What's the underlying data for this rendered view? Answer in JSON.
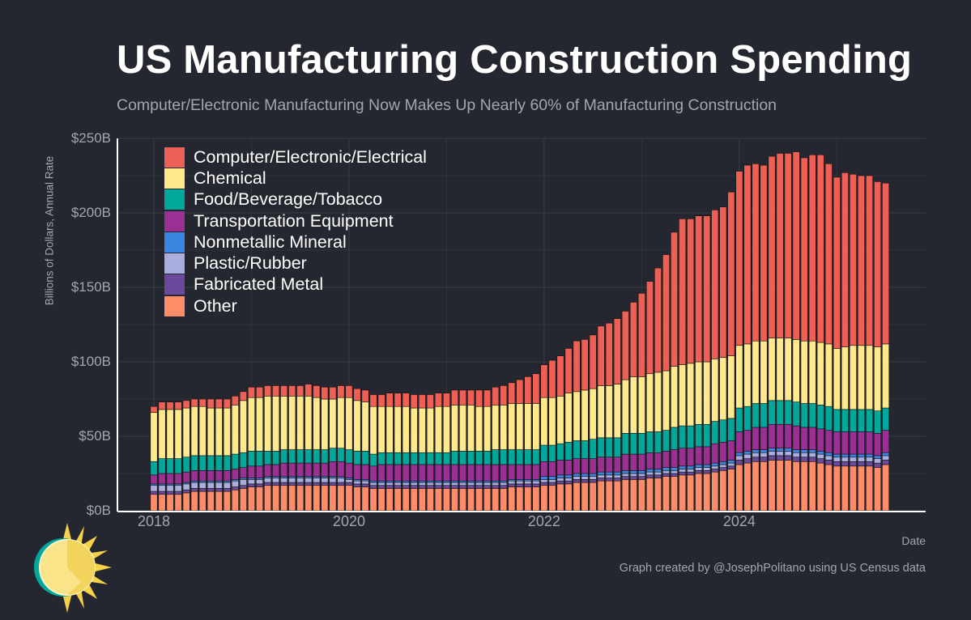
{
  "header": {
    "title": "US Manufacturing Construction Spending",
    "subtitle": "Computer/Electronic Manufacturing Now Makes Up Nearly 60% of Manufacturing Construction"
  },
  "footer": {
    "credit": "Graph created by @JosephPolitano using US Census data"
  },
  "colors": {
    "background": "#24272f",
    "grid": "#3a3d45",
    "axis": "#ffffff"
  },
  "chart_data": {
    "type": "bar",
    "stacked": true,
    "title": "US Manufacturing Construction Spending",
    "subtitle": "Computer/Electronic Manufacturing Now Makes Up Nearly 60% of Manufacturing Construction",
    "xlabel": "Date",
    "ylabel": "Billions of Dollars, Annual Rate",
    "ylim": [
      0,
      250
    ],
    "yticks": [
      {
        "v": 0,
        "label": "$0B"
      },
      {
        "v": 50,
        "label": "$50B"
      },
      {
        "v": 100,
        "label": "$100B"
      },
      {
        "v": 150,
        "label": "$150B"
      },
      {
        "v": 200,
        "label": "$200B"
      },
      {
        "v": 250,
        "label": "$250B"
      }
    ],
    "xticks": [
      "2018",
      "2020",
      "2022",
      "2024"
    ],
    "grid": true,
    "legend_position": "top-left",
    "x": [
      "2018-01",
      "2018-02",
      "2018-03",
      "2018-04",
      "2018-05",
      "2018-06",
      "2018-07",
      "2018-08",
      "2018-09",
      "2018-10",
      "2018-11",
      "2018-12",
      "2019-01",
      "2019-02",
      "2019-03",
      "2019-04",
      "2019-05",
      "2019-06",
      "2019-07",
      "2019-08",
      "2019-09",
      "2019-10",
      "2019-11",
      "2019-12",
      "2020-01",
      "2020-02",
      "2020-03",
      "2020-04",
      "2020-05",
      "2020-06",
      "2020-07",
      "2020-08",
      "2020-09",
      "2020-10",
      "2020-11",
      "2020-12",
      "2021-01",
      "2021-02",
      "2021-03",
      "2021-04",
      "2021-05",
      "2021-06",
      "2021-07",
      "2021-08",
      "2021-09",
      "2021-10",
      "2021-11",
      "2021-12",
      "2022-01",
      "2022-02",
      "2022-03",
      "2022-04",
      "2022-05",
      "2022-06",
      "2022-07",
      "2022-08",
      "2022-09",
      "2022-10",
      "2022-11",
      "2022-12",
      "2023-01",
      "2023-02",
      "2023-03",
      "2023-04",
      "2023-05",
      "2023-06",
      "2023-07",
      "2023-08",
      "2023-09",
      "2023-10",
      "2023-11",
      "2023-12",
      "2024-01",
      "2024-02",
      "2024-03",
      "2024-04",
      "2024-05",
      "2024-06",
      "2024-07",
      "2024-08",
      "2024-09",
      "2024-10",
      "2024-11",
      "2024-12",
      "2025-01",
      "2025-02",
      "2025-03",
      "2025-04",
      "2025-05",
      "2025-06",
      "2025-07"
    ],
    "series": [
      {
        "name": "Other",
        "color": "#ff8c69",
        "values": [
          11,
          11,
          11,
          11,
          12,
          13,
          13,
          13,
          13,
          13,
          14,
          15,
          16,
          16,
          17,
          17,
          17,
          17,
          17,
          17,
          17,
          17,
          17,
          17,
          17,
          16,
          16,
          15,
          15,
          15,
          15,
          15,
          15,
          15,
          15,
          15,
          15,
          15,
          15,
          15,
          15,
          15,
          15,
          15,
          16,
          16,
          16,
          16,
          17,
          17,
          18,
          18,
          19,
          19,
          19,
          20,
          20,
          20,
          21,
          21,
          21,
          22,
          22,
          23,
          23,
          24,
          24,
          25,
          25,
          26,
          27,
          28,
          31,
          32,
          33,
          33,
          34,
          34,
          34,
          33,
          33,
          33,
          32,
          31,
          30,
          30,
          30,
          30,
          30,
          29,
          31
        ]
      },
      {
        "name": "Fabricated Metal",
        "color": "#6b4a9b",
        "values": [
          2,
          2,
          2,
          2,
          2,
          2,
          2,
          2,
          2,
          2,
          2,
          2,
          2,
          2,
          2,
          2,
          2,
          2,
          2,
          2,
          2,
          2,
          2,
          2,
          2,
          2,
          2,
          2,
          2,
          2,
          2,
          2,
          2,
          2,
          2,
          2,
          2,
          2,
          2,
          2,
          2,
          2,
          2,
          2,
          2,
          2,
          2,
          2,
          2,
          2,
          2,
          2,
          2,
          2,
          2,
          2,
          2,
          2,
          2,
          2,
          2,
          2,
          2,
          2,
          2,
          2,
          2,
          2,
          2,
          2,
          2,
          2,
          3,
          3,
          3,
          3,
          3,
          3,
          3,
          3,
          3,
          3,
          3,
          3,
          3,
          3,
          3,
          3,
          3,
          3,
          3
        ]
      },
      {
        "name": "Plastic/Rubber",
        "color": "#a9aede",
        "values": [
          4,
          4,
          4,
          4,
          4,
          4,
          4,
          4,
          4,
          4,
          4,
          4,
          3,
          3,
          3,
          3,
          3,
          3,
          3,
          3,
          3,
          3,
          3,
          3,
          2,
          2,
          2,
          2,
          2,
          2,
          2,
          2,
          2,
          2,
          2,
          2,
          2,
          2,
          2,
          2,
          2,
          2,
          2,
          2,
          2,
          2,
          2,
          2,
          2,
          2,
          2,
          2,
          2,
          2,
          2,
          2,
          2,
          2,
          2,
          2,
          2,
          2,
          2,
          2,
          2,
          2,
          2,
          2,
          2,
          2,
          2,
          2,
          3,
          3,
          3,
          3,
          3,
          3,
          3,
          3,
          3,
          3,
          3,
          3,
          3,
          3,
          3,
          3,
          3,
          3,
          3
        ]
      },
      {
        "name": "Nonmetallic Mineral",
        "color": "#3b86e0",
        "values": [
          1,
          1,
          1,
          1,
          1,
          1,
          1,
          1,
          1,
          1,
          1,
          1,
          1,
          1,
          1,
          1,
          1,
          1,
          1,
          1,
          1,
          1,
          1,
          1,
          1,
          1,
          1,
          1,
          1,
          1,
          1,
          1,
          1,
          1,
          1,
          1,
          1,
          1,
          1,
          1,
          1,
          1,
          1,
          1,
          1,
          1,
          1,
          1,
          2,
          2,
          2,
          2,
          2,
          2,
          2,
          2,
          2,
          2,
          2,
          2,
          2,
          2,
          2,
          2,
          2,
          2,
          2,
          2,
          2,
          2,
          2,
          2,
          2,
          2,
          2,
          2,
          2,
          2,
          2,
          2,
          2,
          2,
          2,
          2,
          2,
          2,
          2,
          2,
          2,
          2,
          2
        ]
      },
      {
        "name": "Transportation Equipment",
        "color": "#9b2f93",
        "values": [
          6,
          7,
          7,
          7,
          7,
          7,
          7,
          7,
          7,
          7,
          7,
          7,
          8,
          8,
          8,
          8,
          9,
          9,
          9,
          9,
          9,
          9,
          10,
          10,
          10,
          10,
          10,
          10,
          11,
          11,
          11,
          11,
          11,
          11,
          11,
          11,
          11,
          11,
          11,
          11,
          11,
          11,
          11,
          11,
          10,
          10,
          10,
          10,
          10,
          10,
          10,
          10,
          10,
          10,
          10,
          10,
          10,
          10,
          11,
          11,
          11,
          11,
          11,
          11,
          12,
          12,
          12,
          12,
          12,
          13,
          13,
          13,
          14,
          14,
          15,
          15,
          16,
          16,
          16,
          16,
          15,
          15,
          15,
          15,
          15,
          15,
          15,
          15,
          15,
          15,
          15
        ]
      },
      {
        "name": "Food/Beverage/Tobacco",
        "color": "#00a89c",
        "values": [
          9,
          10,
          10,
          10,
          10,
          10,
          10,
          10,
          10,
          10,
          10,
          10,
          10,
          10,
          9,
          9,
          9,
          9,
          9,
          9,
          9,
          9,
          9,
          9,
          9,
          9,
          9,
          8,
          8,
          8,
          8,
          8,
          8,
          8,
          8,
          8,
          8,
          9,
          9,
          9,
          9,
          9,
          10,
          10,
          10,
          10,
          10,
          10,
          11,
          11,
          11,
          12,
          12,
          12,
          13,
          13,
          13,
          13,
          14,
          14,
          14,
          14,
          14,
          14,
          15,
          15,
          15,
          15,
          15,
          15,
          15,
          15,
          16,
          16,
          16,
          16,
          16,
          16,
          16,
          16,
          16,
          16,
          16,
          16,
          15,
          15,
          15,
          15,
          15,
          15,
          15
        ]
      },
      {
        "name": "Chemical",
        "color": "#ffe98c",
        "values": [
          33,
          33,
          33,
          33,
          33,
          33,
          33,
          32,
          32,
          32,
          33,
          35,
          36,
          36,
          37,
          37,
          36,
          36,
          36,
          36,
          35,
          34,
          33,
          34,
          35,
          34,
          33,
          32,
          31,
          31,
          31,
          31,
          30,
          30,
          30,
          31,
          31,
          31,
          31,
          31,
          30,
          30,
          30,
          30,
          31,
          31,
          31,
          31,
          32,
          32,
          32,
          33,
          33,
          34,
          34,
          35,
          35,
          36,
          36,
          38,
          38,
          39,
          40,
          40,
          41,
          41,
          42,
          42,
          42,
          42,
          42,
          42,
          42,
          42,
          42,
          42,
          42,
          42,
          42,
          42,
          42,
          42,
          42,
          42,
          41,
          42,
          43,
          43,
          43,
          43,
          43
        ]
      },
      {
        "name": "Computer/Electronic/Electrical",
        "color": "#ee6055",
        "values": [
          4,
          5,
          5,
          5,
          5,
          5,
          5,
          6,
          6,
          6,
          6,
          6,
          7,
          7,
          7,
          7,
          7,
          7,
          7,
          8,
          8,
          8,
          8,
          8,
          8,
          8,
          8,
          8,
          8,
          9,
          9,
          9,
          9,
          9,
          9,
          9,
          9,
          10,
          10,
          10,
          11,
          11,
          12,
          13,
          14,
          16,
          18,
          20,
          22,
          25,
          27,
          30,
          34,
          34,
          36,
          40,
          42,
          44,
          46,
          50,
          56,
          62,
          70,
          78,
          90,
          98,
          97,
          98,
          98,
          100,
          101,
          110,
          117,
          120,
          119,
          118,
          122,
          124,
          124,
          126,
          123,
          125,
          126,
          121,
          115,
          117,
          115,
          114,
          114,
          111,
          108
        ]
      }
    ]
  }
}
